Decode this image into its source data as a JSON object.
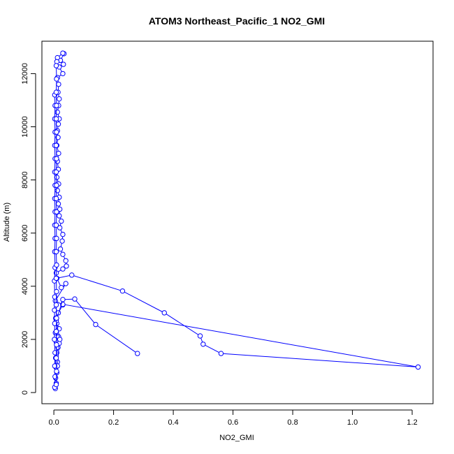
{
  "chart_data": {
    "type": "line",
    "title": "ATOM3 Northeast_Pacific_1 NO2_GMI",
    "xlabel": "NO2_GMI",
    "ylabel": "Altitude (m)",
    "xlim": [
      -0.04,
      1.27
    ],
    "ylim": [
      -420,
      13220
    ],
    "xticks": [
      0.0,
      0.2,
      0.4,
      0.6,
      0.8,
      1.0,
      1.2
    ],
    "xtick_labels": [
      "0.0",
      "0.2",
      "0.4",
      "0.6",
      "0.8",
      "1.0",
      "1.2"
    ],
    "yticks": [
      0,
      2000,
      4000,
      6000,
      8000,
      10000,
      12000
    ],
    "ytick_labels": [
      "0",
      "2000",
      "4000",
      "6000",
      "8000",
      "10000",
      "12000"
    ],
    "grid": false,
    "legend": "none",
    "colors": {
      "series": "#0000ff",
      "axis": "#000000"
    },
    "series": [
      {
        "points": [
          [
            0.005,
            150
          ],
          [
            0.008,
            350
          ],
          [
            0.006,
            550
          ],
          [
            0.01,
            750
          ],
          [
            0.007,
            950
          ],
          [
            0.012,
            1150
          ],
          [
            0.006,
            1300
          ],
          [
            0.01,
            1500
          ],
          [
            0.014,
            1700
          ],
          [
            0.008,
            1900
          ],
          [
            0.016,
            2100
          ],
          [
            0.005,
            2250
          ],
          [
            0.018,
            2400
          ],
          [
            0.01,
            2600
          ],
          [
            0.006,
            2800
          ],
          [
            0.015,
            3000
          ],
          [
            0.03,
            3300
          ],
          [
            0.005,
            3450
          ],
          [
            0.04,
            4100
          ],
          [
            0.025,
            3950
          ],
          [
            0.01,
            4300
          ],
          [
            0.06,
            4420
          ],
          [
            0.23,
            3820
          ],
          [
            0.37,
            3000
          ],
          [
            0.49,
            2130
          ],
          [
            0.5,
            1820
          ],
          [
            0.56,
            1470
          ],
          [
            1.22,
            960
          ],
          [
            0.03,
            3320
          ]
        ]
      },
      {
        "points": [
          [
            0.012,
            1000
          ],
          [
            0.018,
            1850
          ],
          [
            0.02,
            2000
          ],
          [
            0.008,
            2700
          ],
          [
            0.03,
            3500
          ],
          [
            0.07,
            3520
          ],
          [
            0.14,
            2560
          ],
          [
            0.28,
            1470
          ]
        ]
      },
      {
        "points": [
          [
            0.008,
            4500
          ],
          [
            0.03,
            4650
          ],
          [
            0.042,
            4760
          ],
          [
            0.04,
            4960
          ],
          [
            0.03,
            5200
          ],
          [
            0.022,
            5400
          ],
          [
            0.028,
            5700
          ],
          [
            0.03,
            5950
          ],
          [
            0.02,
            6200
          ],
          [
            0.025,
            6450
          ],
          [
            0.018,
            6650
          ],
          [
            0.02,
            6900
          ],
          [
            0.015,
            7100
          ],
          [
            0.018,
            7350
          ],
          [
            0.012,
            7600
          ],
          [
            0.016,
            7850
          ],
          [
            0.01,
            8100
          ],
          [
            0.015,
            8400
          ],
          [
            0.012,
            8700
          ],
          [
            0.016,
            9000
          ],
          [
            0.01,
            9300
          ],
          [
            0.014,
            9600
          ],
          [
            0.012,
            9850
          ],
          [
            0.015,
            10100
          ],
          [
            0.018,
            10300
          ],
          [
            0.012,
            10550
          ],
          [
            0.016,
            10800
          ],
          [
            0.018,
            11050
          ],
          [
            0.014,
            11300
          ],
          [
            0.016,
            11600
          ],
          [
            0.012,
            11850
          ],
          [
            0.03,
            12000
          ],
          [
            0.018,
            12250
          ],
          [
            0.032,
            12350
          ],
          [
            0.022,
            12500
          ],
          [
            0.034,
            12750
          ],
          [
            0.03,
            12770
          ],
          [
            0.012,
            12600
          ],
          [
            0.01,
            12450
          ]
        ]
      },
      {
        "points": [
          [
            0.003,
            200
          ],
          [
            0.004,
            600
          ],
          [
            0.003,
            1000
          ],
          [
            0.004,
            1500
          ],
          [
            0.002,
            2000
          ],
          [
            0.003,
            2600
          ],
          [
            0.002,
            3100
          ],
          [
            0.003,
            3600
          ],
          [
            0.002,
            4200
          ],
          [
            0.004,
            4700
          ],
          [
            0.003,
            5300
          ],
          [
            0.004,
            5800
          ],
          [
            0.003,
            6300
          ],
          [
            0.004,
            6800
          ],
          [
            0.003,
            7300
          ],
          [
            0.004,
            7800
          ],
          [
            0.003,
            8300
          ],
          [
            0.004,
            8800
          ],
          [
            0.003,
            9300
          ],
          [
            0.004,
            9800
          ],
          [
            0.003,
            10300
          ],
          [
            0.004,
            10800
          ],
          [
            0.003,
            11200
          ]
        ]
      },
      {
        "points": [
          [
            0.008,
            300
          ],
          [
            0.009,
            800
          ],
          [
            0.008,
            1300
          ],
          [
            0.009,
            1800
          ],
          [
            0.008,
            2300
          ],
          [
            0.009,
            2800
          ],
          [
            0.008,
            3300
          ],
          [
            0.009,
            3800
          ],
          [
            0.008,
            4300
          ],
          [
            0.009,
            4800
          ],
          [
            0.008,
            5300
          ],
          [
            0.009,
            5800
          ],
          [
            0.008,
            6300
          ],
          [
            0.009,
            6800
          ],
          [
            0.008,
            7300
          ],
          [
            0.009,
            7800
          ],
          [
            0.008,
            8300
          ],
          [
            0.009,
            8800
          ],
          [
            0.008,
            9300
          ],
          [
            0.009,
            9800
          ],
          [
            0.008,
            10300
          ],
          [
            0.009,
            10800
          ],
          [
            0.008,
            11300
          ],
          [
            0.009,
            11800
          ],
          [
            0.008,
            12300
          ]
        ]
      }
    ]
  }
}
